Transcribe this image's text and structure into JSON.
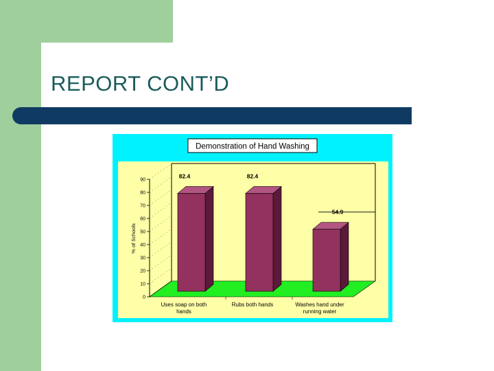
{
  "slide": {
    "title": "REPORT CONT’D"
  },
  "colors": {
    "band": "#9fcf9c",
    "title_text": "#1b5b5b",
    "title_bar": "#0f3b62",
    "chart_border": "#00f2ff",
    "plot_background": "#ffffa8",
    "bar_front": "#93325e",
    "bar_side": "#5c1a3a",
    "bar_top": "#b25583",
    "floor": "#22ee22"
  },
  "chart_data": {
    "type": "bar",
    "title": "Demonstration of Hand Washing",
    "ylabel": "% of Schools",
    "xlabel": "",
    "ylim": [
      0,
      90
    ],
    "yticks": [
      0,
      10,
      20,
      30,
      40,
      50,
      60,
      70,
      80,
      90
    ],
    "categories": [
      [
        "Uses soap on both",
        "hands"
      ],
      [
        "Rubs both hands"
      ],
      [
        "Washes hand under",
        "running water"
      ]
    ],
    "values": [
      82.4,
      82.4,
      54.9
    ],
    "data_labels": [
      "82.4",
      "82.4",
      "54.9"
    ],
    "grid": false,
    "legend": "none"
  }
}
